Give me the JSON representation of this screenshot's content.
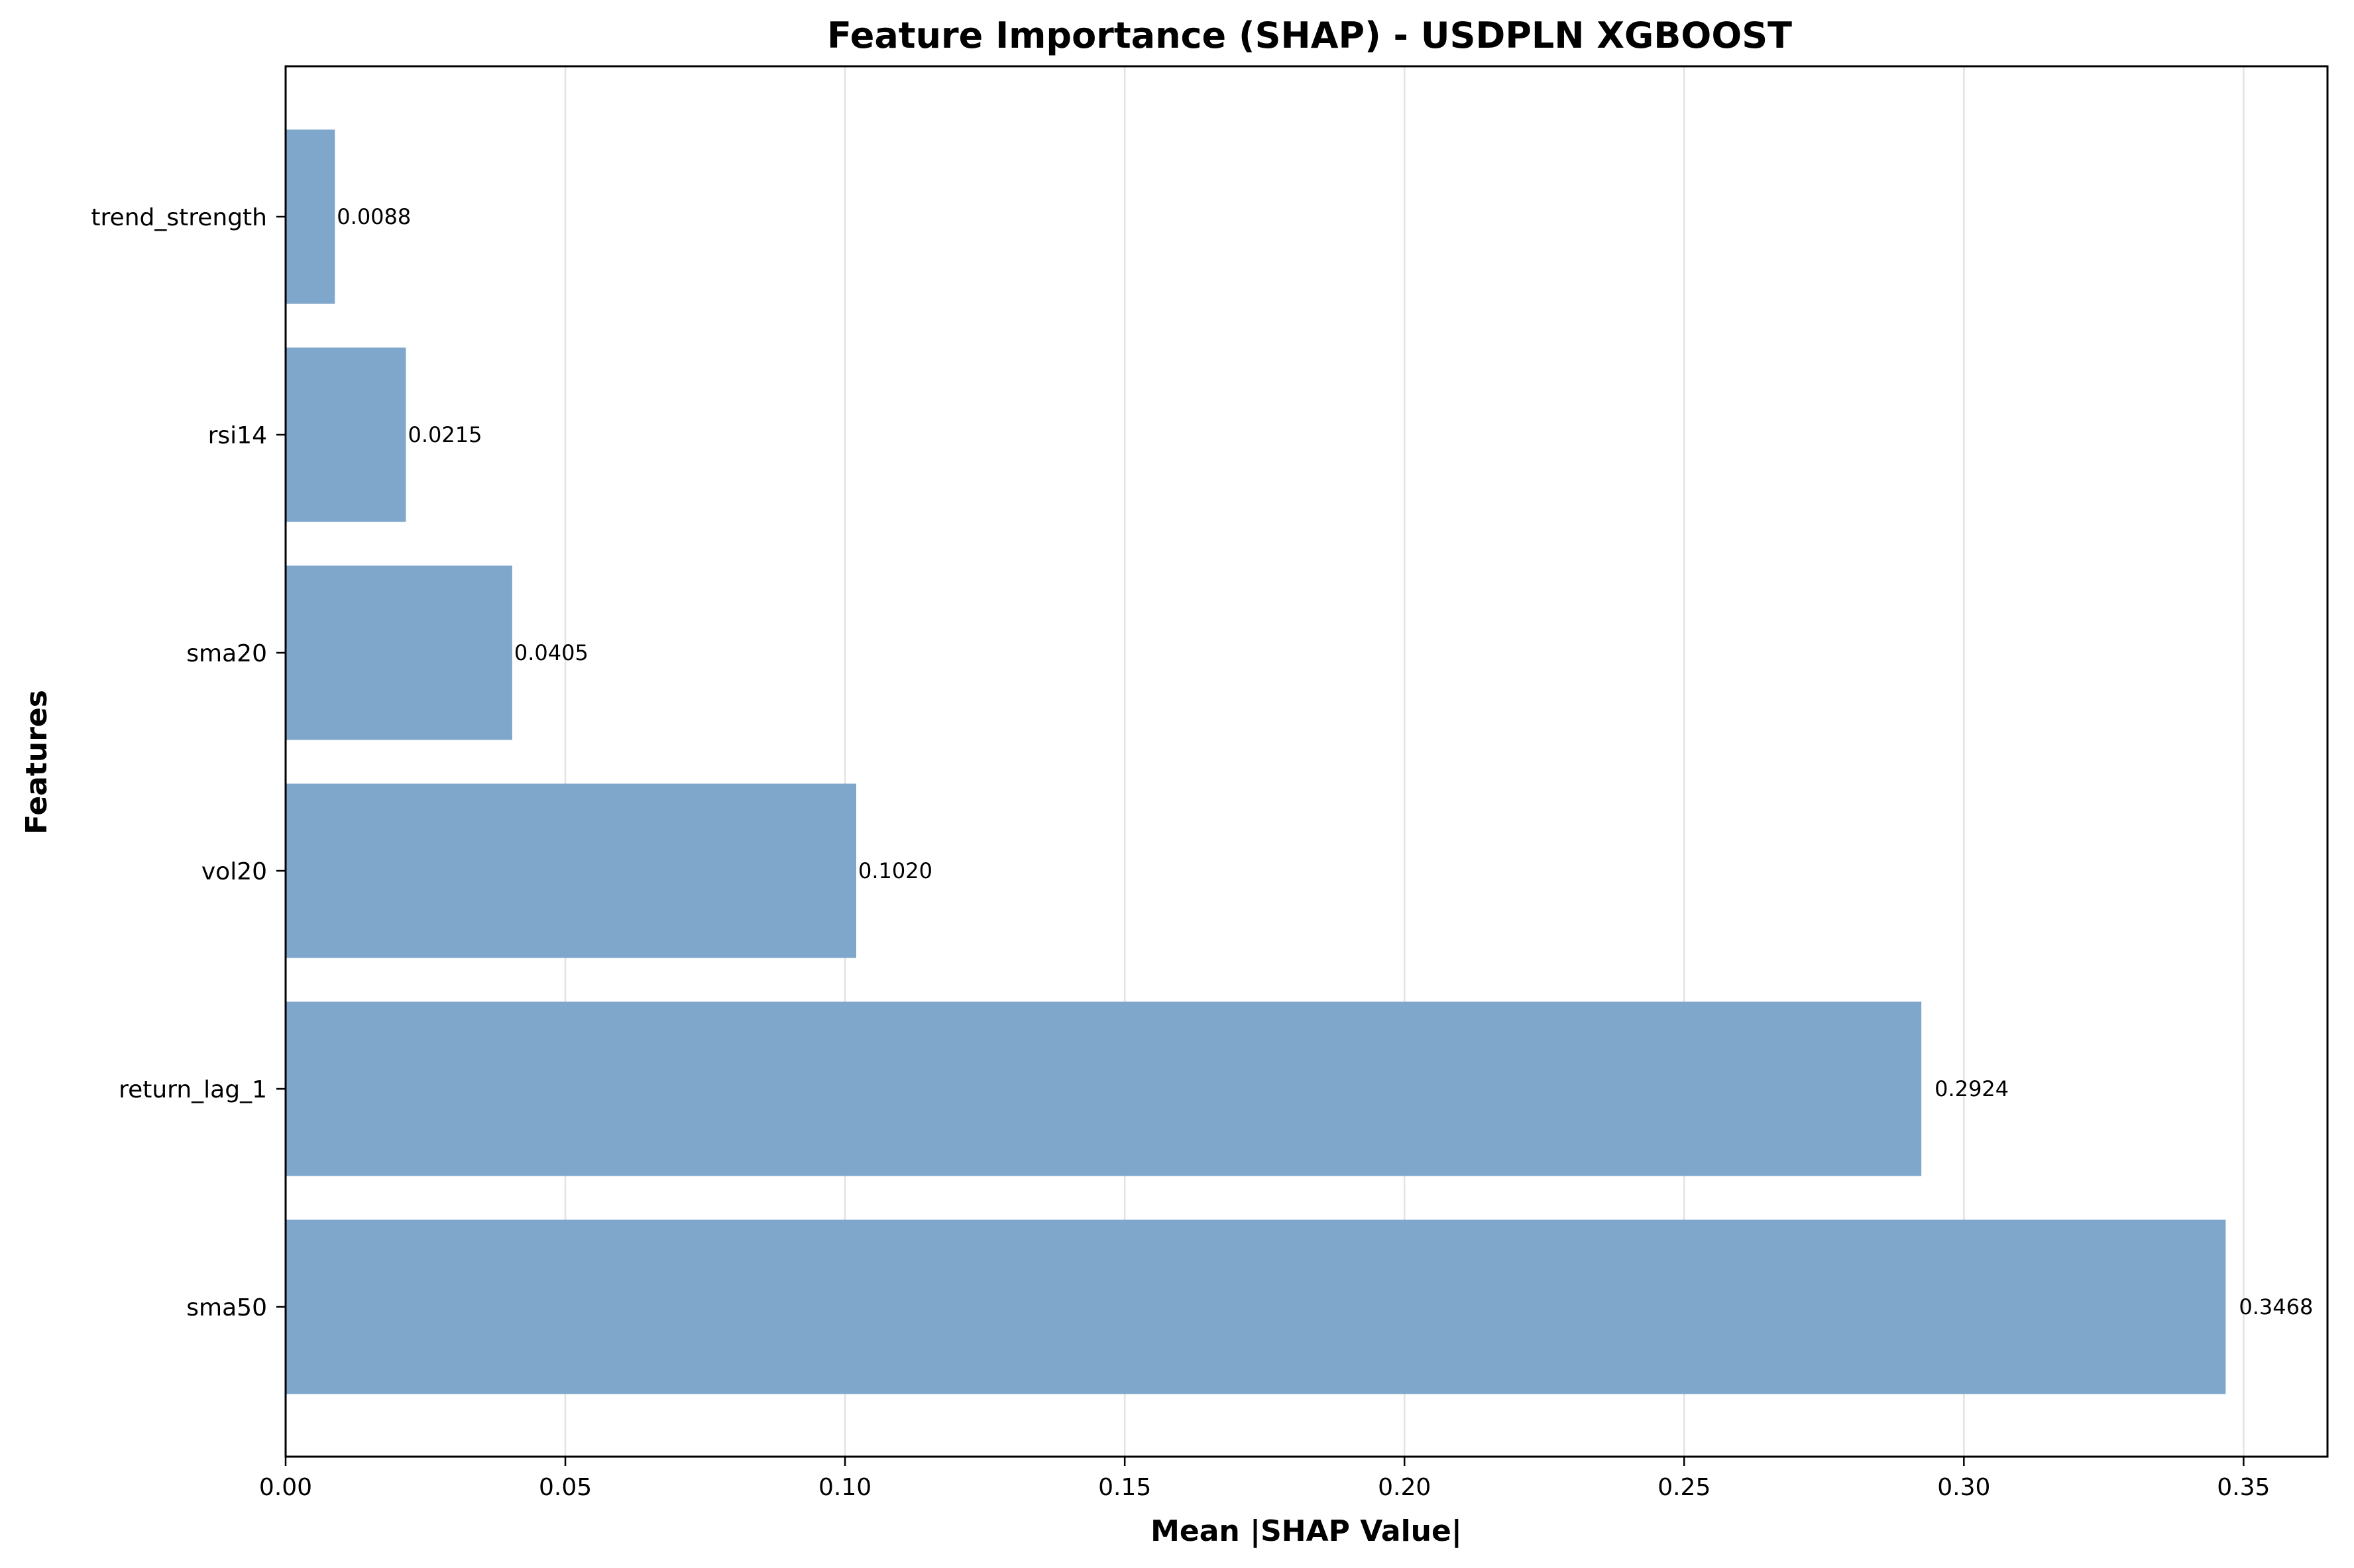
{
  "chart_data": {
    "type": "bar",
    "orientation": "horizontal",
    "title": "Feature Importance (SHAP) - USDPLN XGBOOST",
    "xlabel": "Mean |SHAP Value|",
    "ylabel": "Features",
    "xlim": [
      0,
      0.365
    ],
    "xticks": [
      0.0,
      0.05,
      0.1,
      0.15,
      0.2,
      0.25,
      0.3,
      0.35
    ],
    "xtick_labels": [
      "0.00",
      "0.05",
      "0.10",
      "0.15",
      "0.20",
      "0.25",
      "0.30",
      "0.35"
    ],
    "grid": "vertical",
    "bar_color": "#7ea7cb",
    "categories": [
      "trend_strength",
      "rsi14",
      "sma20",
      "vol20",
      "return_lag_1",
      "sma50"
    ],
    "values": [
      0.0088,
      0.0215,
      0.0405,
      0.102,
      0.2924,
      0.3468
    ],
    "value_labels": [
      "0.0088",
      "0.0215",
      "0.0405",
      "0.1020",
      "0.2924",
      "0.3468"
    ]
  }
}
